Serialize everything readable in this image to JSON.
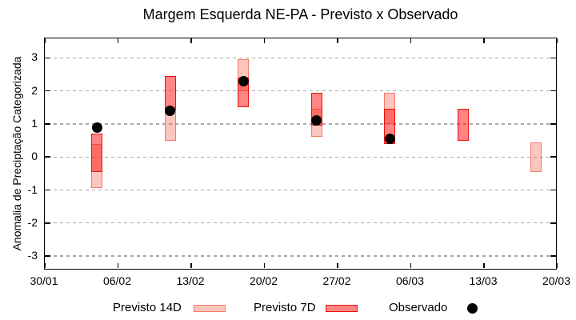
{
  "chart_data": {
    "type": "bar",
    "subtype": "range-bars-with-scatter-overlay",
    "title": "Margem Esquerda NE-PA - Previsto x Observado",
    "ylabel": "Anomalia de Preciptação Categorizada",
    "xlabel": "",
    "ylim": [
      -3.5,
      3.5
    ],
    "yticks": [
      3,
      2,
      1,
      0,
      -1,
      -2,
      -3
    ],
    "xticks": [
      "30/01",
      "06/02",
      "13/02",
      "20/02",
      "27/02",
      "06/03",
      "13/03",
      "20/03"
    ],
    "grid": "horizontal dashed gray",
    "legend_position": "bottom",
    "series": [
      {
        "name": "Previsto 14D",
        "type": "range-bar",
        "points": [
          {
            "date": "04/02",
            "low": -0.95,
            "high": 0.4
          },
          {
            "date": "11/02",
            "low": 0.5,
            "high": 1.5
          },
          {
            "date": "18/02",
            "low": 2.0,
            "high": 2.95
          },
          {
            "date": "25/02",
            "low": 0.6,
            "high": 1.45
          },
          {
            "date": "04/03",
            "low": 1.0,
            "high": 1.95
          },
          {
            "date": "18/03",
            "low": -0.45,
            "high": 0.45
          }
        ]
      },
      {
        "name": "Previsto 7D",
        "type": "range-bar",
        "points": [
          {
            "date": "04/02",
            "low": -0.45,
            "high": 0.7
          },
          {
            "date": "11/02",
            "low": 1.4,
            "high": 2.45
          },
          {
            "date": "18/02",
            "low": 1.5,
            "high": 2.4
          },
          {
            "date": "25/02",
            "low": 0.95,
            "high": 1.95
          },
          {
            "date": "04/03",
            "low": 0.4,
            "high": 1.45
          },
          {
            "date": "11/03",
            "low": 0.5,
            "high": 1.45
          }
        ]
      },
      {
        "name": "Observado",
        "type": "scatter",
        "points": [
          {
            "date": "04/02",
            "value": 0.9
          },
          {
            "date": "11/02",
            "value": 1.4
          },
          {
            "date": "18/02",
            "value": 2.3
          },
          {
            "date": "25/02",
            "value": 1.1
          },
          {
            "date": "04/03",
            "value": 0.55
          }
        ]
      }
    ],
    "colors": {
      "forecast14d_fill": "rgba(248,95,75,0.36)",
      "forecast14d_border": "rgba(238,110,90,0.85)",
      "forecast7d_fill": "rgba(255,40,32,0.56)",
      "forecast7d_border": "#e81210",
      "observed": "#000000",
      "grid": "#a8a8a8",
      "axis": "#000000"
    }
  }
}
